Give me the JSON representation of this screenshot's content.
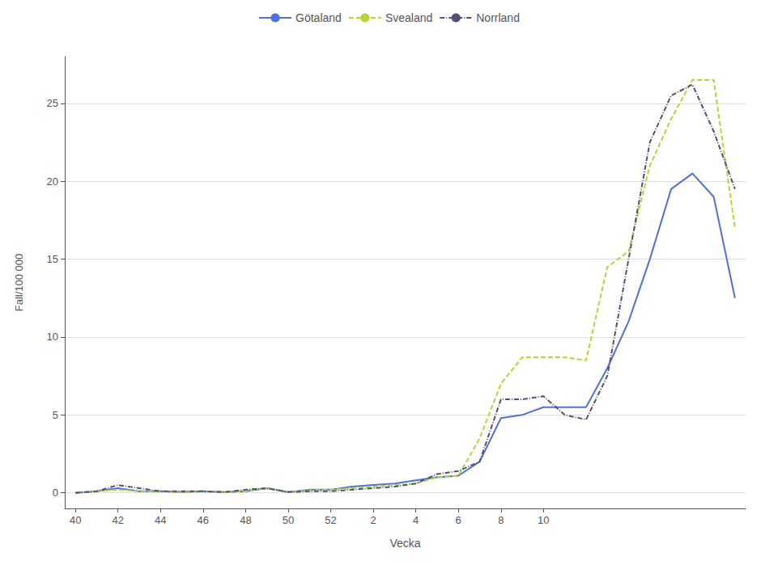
{
  "chart_data": {
    "type": "line",
    "xlabel": "Vecka",
    "ylabel": "Fall/100 000",
    "categories": [
      "40",
      null,
      "42",
      null,
      "44",
      null,
      "46",
      null,
      "48",
      null,
      "50",
      null,
      "52",
      null,
      "2",
      null,
      "4",
      null,
      "6",
      null,
      "8",
      null,
      "10",
      null,
      null,
      null,
      null,
      null,
      null,
      null,
      null,
      null
    ],
    "series": [
      {
        "name": "Götaland",
        "line_style": "solid",
        "values": [
          0.0,
          0.1,
          0.3,
          0.1,
          0.1,
          0.05,
          0.1,
          0.05,
          0.1,
          0.3,
          0.05,
          0.2,
          0.2,
          0.4,
          0.5,
          0.6,
          0.8,
          1.0,
          1.1,
          2.0,
          4.8,
          5.0,
          5.5,
          5.5,
          5.5,
          8.0,
          11.0,
          15.0,
          19.5,
          20.5,
          19.0,
          12.5
        ]
      },
      {
        "name": "Svealand",
        "line_style": "dashed",
        "values": [
          0.0,
          0.1,
          0.2,
          0.1,
          0.1,
          0.05,
          0.1,
          0.05,
          0.1,
          0.3,
          0.05,
          0.15,
          0.2,
          0.3,
          0.4,
          0.5,
          0.6,
          1.0,
          1.1,
          3.5,
          7.0,
          8.7,
          8.7,
          8.7,
          8.5,
          14.5,
          15.5,
          21.0,
          24.0,
          26.5,
          26.5,
          17.0
        ]
      },
      {
        "name": "Norrland",
        "line_style": "dashdot",
        "values": [
          0.0,
          0.1,
          0.5,
          0.3,
          0.1,
          0.1,
          0.1,
          0.05,
          0.2,
          0.3,
          0.05,
          0.1,
          0.1,
          0.2,
          0.3,
          0.4,
          0.6,
          1.2,
          1.4,
          2.0,
          6.0,
          6.0,
          6.2,
          5.0,
          4.7,
          7.5,
          15.0,
          22.5,
          25.5,
          26.2,
          23.2,
          19.5
        ]
      }
    ],
    "ylim": [
      -1,
      28
    ],
    "yticks": [
      0,
      5,
      10,
      15,
      20,
      25
    ],
    "grid": true,
    "legend": "top"
  }
}
